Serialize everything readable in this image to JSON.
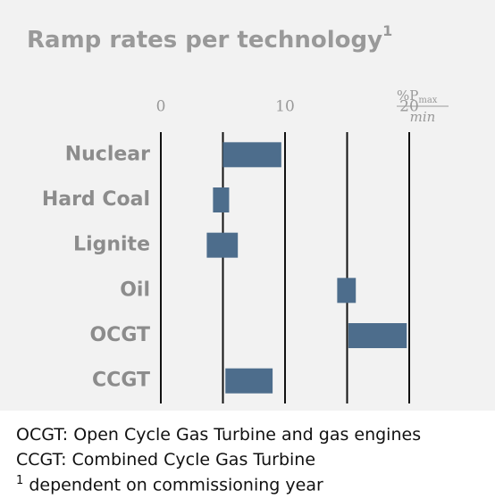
{
  "chart_data": {
    "type": "range_bar",
    "title": "Ramp rates per technology",
    "title_superscript": "1",
    "unit": {
      "numerator": "%P",
      "subscript": "max",
      "denominator": "min"
    },
    "categories": [
      "Nuclear",
      "Hard Coal",
      "Lignite",
      "Oil",
      "OCGT",
      "CCGT"
    ],
    "values": [
      [
        5.0,
        9.7
      ],
      [
        4.2,
        5.5
      ],
      [
        3.7,
        6.2
      ],
      [
        14.2,
        15.7
      ],
      [
        15.1,
        19.8
      ],
      [
        5.2,
        9.0
      ]
    ],
    "color": "#4d6d8c",
    "xlim": [
      0,
      20
    ],
    "xticks": [
      0,
      10,
      20
    ],
    "minor_xticks": [
      5,
      15
    ],
    "grid": true
  },
  "notes": [
    "OCGT: Open Cycle Gas Turbine and gas engines",
    "CCGT: Combined Cycle Gas Turbine"
  ],
  "footnote": {
    "marker": "1",
    "text": " dependent on commissioning year"
  }
}
